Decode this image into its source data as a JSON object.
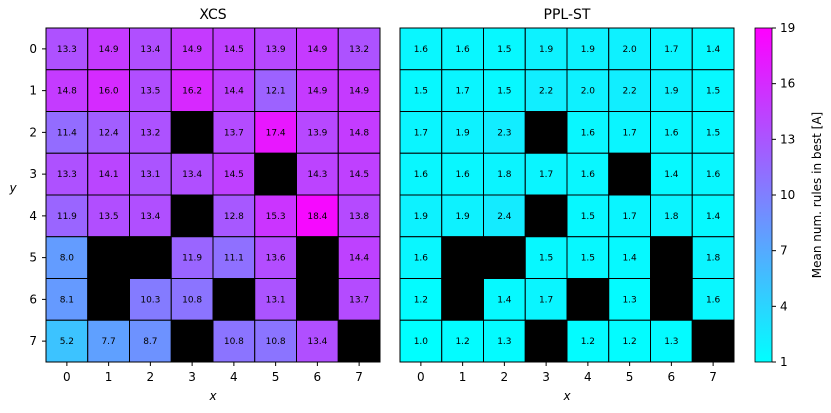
{
  "chart_data": [
    {
      "type": "heatmap",
      "title": "XCS",
      "xlabel": "x",
      "ylabel": "y",
      "x_ticks": [
        "0",
        "1",
        "2",
        "3",
        "4",
        "5",
        "6",
        "7"
      ],
      "y_ticks": [
        "0",
        "1",
        "2",
        "3",
        "4",
        "5",
        "6",
        "7"
      ],
      "grid": true,
      "blocked_color": "#000000",
      "values": [
        [
          13.3,
          14.9,
          13.4,
          14.9,
          14.5,
          13.9,
          14.9,
          13.2
        ],
        [
          14.8,
          16.0,
          13.5,
          16.2,
          14.4,
          12.1,
          14.9,
          14.9
        ],
        [
          11.4,
          12.4,
          13.2,
          null,
          13.7,
          17.4,
          13.9,
          14.8
        ],
        [
          13.3,
          14.1,
          13.1,
          13.4,
          14.5,
          null,
          14.3,
          14.5
        ],
        [
          11.9,
          13.5,
          13.4,
          null,
          12.8,
          15.3,
          18.4,
          13.8
        ],
        [
          8.0,
          null,
          null,
          11.9,
          11.1,
          13.6,
          null,
          14.4
        ],
        [
          8.1,
          null,
          10.3,
          10.8,
          null,
          13.1,
          null,
          13.7
        ],
        [
          5.2,
          7.7,
          8.7,
          null,
          10.8,
          10.8,
          13.4,
          null
        ]
      ]
    },
    {
      "type": "heatmap",
      "title": "PPL-ST",
      "xlabel": "x",
      "ylabel": "",
      "x_ticks": [
        "0",
        "1",
        "2",
        "3",
        "4",
        "5",
        "6",
        "7"
      ],
      "y_ticks": [],
      "grid": true,
      "blocked_color": "#000000",
      "values": [
        [
          1.6,
          1.6,
          1.5,
          1.9,
          1.9,
          2.0,
          1.7,
          1.4
        ],
        [
          1.5,
          1.7,
          1.5,
          2.2,
          2.0,
          2.2,
          1.9,
          1.5
        ],
        [
          1.7,
          1.9,
          2.3,
          null,
          1.6,
          1.7,
          1.6,
          1.5
        ],
        [
          1.6,
          1.6,
          1.8,
          1.7,
          1.6,
          null,
          1.4,
          1.6
        ],
        [
          1.9,
          1.9,
          2.4,
          null,
          1.5,
          1.7,
          1.8,
          1.4
        ],
        [
          1.6,
          null,
          null,
          1.5,
          1.5,
          1.4,
          null,
          1.8
        ],
        [
          1.2,
          null,
          1.4,
          1.7,
          null,
          1.3,
          null,
          1.6
        ],
        [
          1.0,
          1.2,
          1.3,
          null,
          1.2,
          1.2,
          1.3,
          null
        ]
      ]
    }
  ],
  "colorbar": {
    "label": "Mean num. rules in best [A]",
    "range": [
      1,
      19
    ],
    "ticks": [
      "1",
      "4",
      "7",
      "10",
      "13",
      "16",
      "19"
    ],
    "colormap": "cool",
    "color_low": "#00ffff",
    "color_high": "#ff00ff"
  }
}
